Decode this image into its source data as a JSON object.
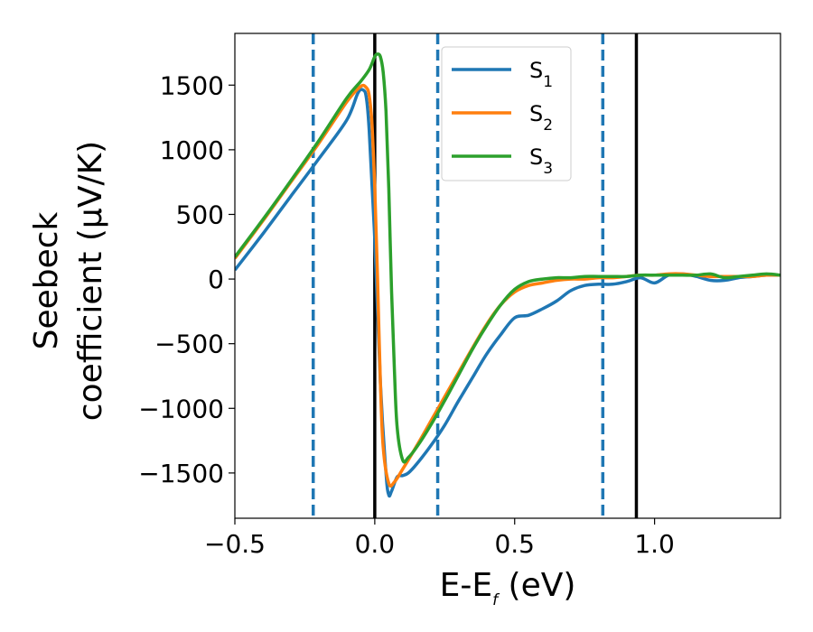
{
  "chart_data": {
    "type": "line",
    "xlabel": {
      "main": "E-E",
      "sub": "f",
      "rest": " (eV)"
    },
    "ylabel": {
      "line1": "Seebeck",
      "line2": "coefficient  (μV/K)"
    },
    "xlim": [
      -0.5,
      1.45
    ],
    "ylim": [
      -1850,
      1900
    ],
    "xticks": [
      -0.5,
      0.0,
      0.5,
      1.0
    ],
    "xtick_labels": [
      "−0.5",
      "0.0",
      "0.5",
      "1.0"
    ],
    "yticks": [
      -1500,
      -1000,
      -500,
      0,
      500,
      1000,
      1500
    ],
    "ytick_labels": [
      "−1500",
      "−1000",
      "−500",
      "0",
      "500",
      "1000",
      "1500"
    ],
    "grid": false,
    "legend_position": "top-center",
    "vertical_lines": {
      "solid": {
        "color": "#000000",
        "x": [
          0.0,
          0.935
        ]
      },
      "dashed": {
        "color": "#1f77b4",
        "x": [
          -0.22,
          0.225,
          0.815
        ]
      }
    },
    "series": [
      {
        "name": "S",
        "sub": "1",
        "color": "#1f77b4",
        "x": [
          -0.5,
          -0.4,
          -0.3,
          -0.2,
          -0.1,
          -0.06,
          -0.04,
          -0.03,
          -0.02,
          0.0,
          0.02,
          0.04,
          0.05,
          0.06,
          0.08,
          0.1,
          0.12,
          0.15,
          0.2,
          0.25,
          0.3,
          0.35,
          0.4,
          0.45,
          0.5,
          0.55,
          0.6,
          0.65,
          0.7,
          0.75,
          0.8,
          0.85,
          0.9,
          0.95,
          1.0,
          1.05,
          1.1,
          1.15,
          1.2,
          1.25,
          1.3,
          1.35,
          1.4,
          1.45
        ],
        "y": [
          70,
          350,
          640,
          930,
          1230,
          1440,
          1460,
          1400,
          1150,
          300,
          -800,
          -1500,
          -1670,
          -1640,
          -1530,
          -1520,
          -1500,
          -1430,
          -1290,
          -1130,
          -940,
          -760,
          -580,
          -430,
          -300,
          -280,
          -230,
          -170,
          -90,
          -50,
          -40,
          -40,
          -20,
          10,
          -30,
          30,
          40,
          20,
          -10,
          -10,
          10,
          20,
          30,
          30
        ]
      },
      {
        "name": "S",
        "sub": "2",
        "color": "#ff7f0e",
        "x": [
          -0.5,
          -0.4,
          -0.3,
          -0.2,
          -0.1,
          -0.05,
          -0.03,
          -0.02,
          -0.01,
          0.0,
          0.01,
          0.02,
          0.03,
          0.05,
          0.07,
          0.1,
          0.15,
          0.2,
          0.25,
          0.3,
          0.35,
          0.4,
          0.45,
          0.5,
          0.55,
          0.6,
          0.65,
          0.7,
          0.75,
          0.8,
          0.85,
          0.9,
          0.95,
          1.0,
          1.05,
          1.1,
          1.15,
          1.2,
          1.25,
          1.3,
          1.35,
          1.4,
          1.45
        ],
        "y": [
          160,
          450,
          750,
          1050,
          1370,
          1490,
          1480,
          1420,
          1200,
          700,
          0,
          -800,
          -1300,
          -1580,
          -1570,
          -1470,
          -1290,
          -1100,
          -910,
          -720,
          -530,
          -350,
          -200,
          -100,
          -50,
          -30,
          -10,
          0,
          0,
          10,
          10,
          20,
          30,
          30,
          40,
          40,
          30,
          20,
          20,
          20,
          20,
          30,
          30
        ]
      },
      {
        "name": "S",
        "sub": "3",
        "color": "#2ca02c",
        "x": [
          -0.5,
          -0.4,
          -0.3,
          -0.2,
          -0.1,
          -0.05,
          -0.02,
          0.0,
          0.01,
          0.02,
          0.03,
          0.04,
          0.05,
          0.06,
          0.07,
          0.08,
          0.1,
          0.12,
          0.15,
          0.2,
          0.25,
          0.3,
          0.35,
          0.4,
          0.45,
          0.5,
          0.55,
          0.6,
          0.65,
          0.7,
          0.75,
          0.8,
          0.85,
          0.9,
          0.95,
          1.0,
          1.05,
          1.1,
          1.15,
          1.2,
          1.25,
          1.3,
          1.35,
          1.4,
          1.45
        ],
        "y": [
          170,
          460,
          760,
          1070,
          1400,
          1530,
          1620,
          1720,
          1740,
          1720,
          1600,
          1300,
          700,
          -100,
          -700,
          -1150,
          -1400,
          -1380,
          -1300,
          -1130,
          -940,
          -740,
          -540,
          -360,
          -200,
          -80,
          -20,
          0,
          10,
          10,
          20,
          20,
          20,
          20,
          30,
          30,
          30,
          30,
          30,
          40,
          10,
          20,
          30,
          40,
          30
        ]
      }
    ]
  }
}
